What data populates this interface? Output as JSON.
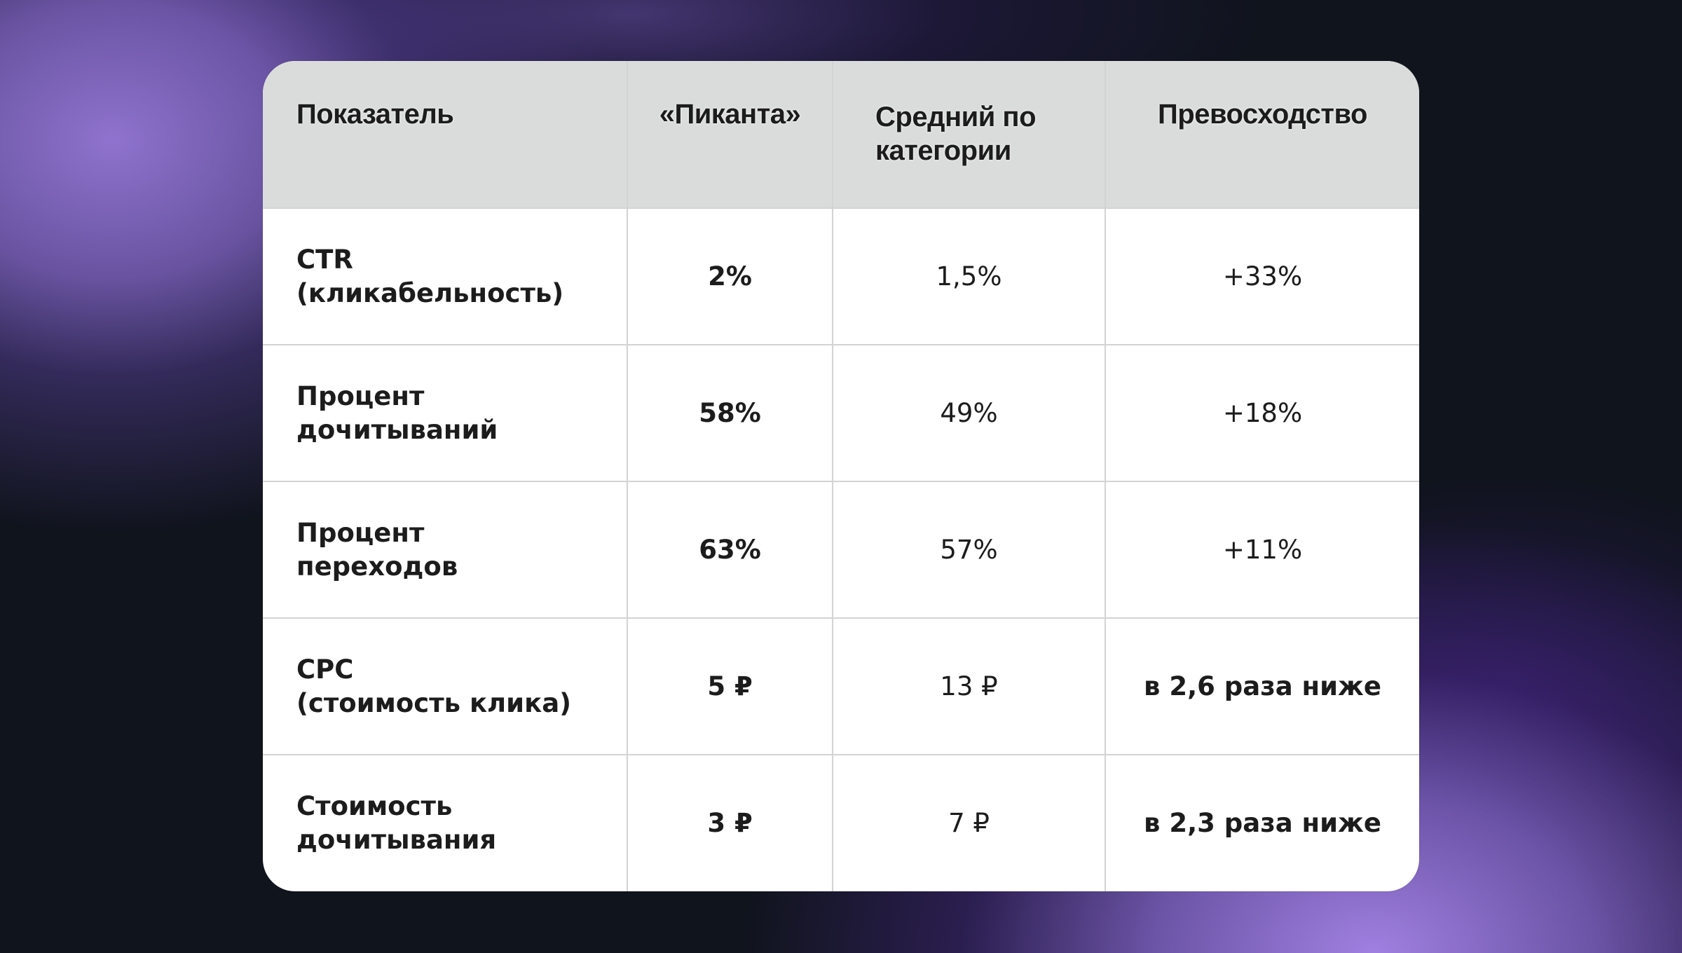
{
  "table": {
    "headers": {
      "metric": "Показатель",
      "brand": "«Пиканта»",
      "average_line1": "Средний по",
      "average_line2": "категории",
      "advantage": "Превосходство"
    },
    "rows": [
      {
        "metric_line1": "CTR",
        "metric_line2": "(кликабельность)",
        "brand": "2%",
        "average": "1,5%",
        "advantage": "+33%",
        "advantage_bold": false
      },
      {
        "metric_line1": "Процент",
        "metric_line2": "дочитываний",
        "brand": "58%",
        "average": "49%",
        "advantage": "+18%",
        "advantage_bold": false
      },
      {
        "metric_line1": "Процент",
        "metric_line2": "переходов",
        "brand": "63%",
        "average": "57%",
        "advantage": "+11%",
        "advantage_bold": false
      },
      {
        "metric_line1": "CPC",
        "metric_line2": "(стоимость клика)",
        "brand": "5 ₽",
        "average": "13 ₽",
        "advantage": "в 2,6 раза ниже",
        "advantage_bold": true
      },
      {
        "metric_line1": "Стоимость",
        "metric_line2": "дочитывания",
        "brand": "3 ₽",
        "average": "7 ₽",
        "advantage": "в 2,3 раза ниже",
        "advantage_bold": true
      }
    ]
  },
  "colors": {
    "header_bg": "#dadcdb",
    "row_bg": "#ffffff",
    "border": "#d3d3d3",
    "text": "#1c1c1c",
    "background_dark": "#10141d",
    "glow_purple": "#9a80dc"
  }
}
